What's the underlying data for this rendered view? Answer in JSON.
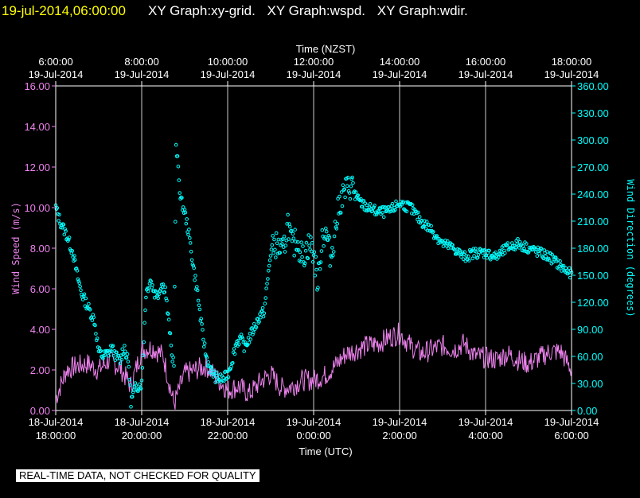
{
  "header": {
    "timestamp": "19-jul-2014,06:00:00",
    "titles": [
      "XY Graph:xy-grid.",
      "XY Graph:wspd.",
      "XY Graph:wdir."
    ]
  },
  "disclaimer": "REAL-TIME DATA, NOT CHECKED FOR QUALITY",
  "colors": {
    "background": "#000000",
    "axes": "#ffffff",
    "wspd": "#ee82ee",
    "wdir": "#00ffff",
    "header_time": "#ffff00"
  },
  "chart_data": {
    "type": "scatter",
    "top_axis": {
      "label": "Time (NZST)",
      "ticks": [
        {
          "time": "6:00:00",
          "date": "19-Jul-2014"
        },
        {
          "time": "8:00:00",
          "date": "19-Jul-2014"
        },
        {
          "time": "10:00:00",
          "date": "19-Jul-2014"
        },
        {
          "time": "12:00:00",
          "date": "19-Jul-2014"
        },
        {
          "time": "14:00:00",
          "date": "19-Jul-2014"
        },
        {
          "time": "16:00:00",
          "date": "19-Jul-2014"
        },
        {
          "time": "18:00:00",
          "date": "19-Jul-2014"
        }
      ]
    },
    "bottom_axis": {
      "label": "Time (UTC)",
      "ticks": [
        {
          "date": "18-Jul-2014",
          "time": "18:00:00"
        },
        {
          "date": "18-Jul-2014",
          "time": "20:00:00"
        },
        {
          "date": "18-Jul-2014",
          "time": "22:00:00"
        },
        {
          "date": "19-Jul-2014",
          "time": "0:00:00"
        },
        {
          "date": "19-Jul-2014",
          "time": "2:00:00"
        },
        {
          "date": "19-Jul-2014",
          "time": "4:00:00"
        },
        {
          "date": "19-Jul-2014",
          "time": "6:00:00"
        }
      ]
    },
    "y_left": {
      "label": "Wind Speed (m/s)",
      "range": [
        0,
        16
      ],
      "ticks": [
        "0.00",
        "2.00",
        "4.00",
        "6.00",
        "8.00",
        "10.00",
        "12.00",
        "14.00",
        "16.00"
      ]
    },
    "y_right": {
      "label": "Wind Direction (degrees)",
      "range": [
        0,
        360
      ],
      "ticks": [
        "0.00",
        "30.00",
        "60.00",
        "90.00",
        "120.00",
        "150.00",
        "180.00",
        "210.00",
        "240.00",
        "270.00",
        "300.00",
        "330.00",
        "360.00"
      ]
    },
    "x_range_hours_utc": [
      18,
      30
    ],
    "grid": "vertical",
    "series": [
      {
        "key": "wspd",
        "axis": "left",
        "style": "line",
        "color": "#ee82ee",
        "x": [
          18.0,
          18.25,
          18.5,
          18.75,
          19.0,
          19.25,
          19.5,
          19.75,
          20.0,
          20.25,
          20.5,
          20.75,
          21.0,
          21.25,
          21.5,
          21.75,
          22.0,
          22.25,
          22.5,
          22.75,
          23.0,
          23.25,
          23.5,
          23.75,
          24.0,
          24.25,
          24.5,
          24.75,
          25.0,
          25.25,
          25.5,
          25.75,
          26.0,
          26.25,
          26.5,
          26.75,
          27.0,
          27.25,
          27.5,
          27.75,
          28.0,
          28.25,
          28.5,
          28.75,
          29.0,
          29.25,
          29.5,
          29.75,
          30.0
        ],
        "y": [
          0.6,
          2.0,
          2.2,
          2.3,
          2.0,
          2.5,
          2.1,
          1.2,
          3.0,
          3.1,
          2.7,
          0.3,
          1.8,
          2.0,
          2.2,
          1.6,
          1.0,
          1.2,
          0.8,
          1.4,
          1.8,
          1.1,
          1.2,
          1.5,
          1.5,
          1.7,
          2.2,
          2.8,
          3.0,
          3.2,
          3.3,
          3.6,
          3.8,
          3.2,
          2.8,
          3.0,
          3.2,
          3.0,
          3.3,
          2.7,
          2.6,
          2.5,
          2.8,
          2.5,
          2.3,
          2.6,
          2.9,
          2.9,
          2.0
        ]
      },
      {
        "key": "wdir",
        "axis": "right",
        "style": "scatter",
        "color": "#00ffff",
        "x": [
          18.0,
          18.1,
          18.25,
          18.4,
          18.5,
          18.6,
          18.75,
          18.9,
          19.0,
          19.1,
          19.25,
          19.3,
          19.4,
          19.5,
          19.55,
          19.6,
          19.7,
          19.75,
          19.85,
          20.0,
          20.1,
          20.2,
          20.3,
          20.4,
          20.45,
          20.55,
          20.6,
          20.65,
          20.7,
          20.75,
          20.8,
          20.85,
          20.9,
          21.0,
          21.1,
          21.2,
          21.3,
          21.4,
          21.5,
          21.6,
          21.75,
          21.9,
          22.0,
          22.1,
          22.2,
          22.3,
          22.4,
          22.5,
          22.6,
          22.75,
          22.85,
          23.0,
          23.1,
          23.2,
          23.3,
          23.4,
          23.5,
          23.6,
          23.75,
          23.9,
          24.0,
          24.1,
          24.2,
          24.3,
          24.4,
          24.5,
          24.6,
          24.75,
          24.9,
          25.0,
          25.1,
          25.25,
          25.5,
          25.75,
          26.0,
          26.25,
          26.5,
          26.75,
          27.0,
          27.25,
          27.5,
          27.75,
          28.0,
          28.25,
          28.5,
          28.75,
          29.0,
          29.25,
          29.5,
          29.75,
          30.0
        ],
        "y": [
          225,
          210,
          195,
          175,
          150,
          130,
          115,
          100,
          65,
          60,
          65,
          70,
          60,
          55,
          65,
          70,
          50,
          10,
          25,
          30,
          130,
          145,
          130,
          130,
          140,
          135,
          110,
          90,
          60,
          55,
          290,
          270,
          235,
          220,
          195,
          160,
          130,
          90,
          60,
          45,
          35,
          35,
          40,
          55,
          75,
          80,
          70,
          80,
          90,
          105,
          110,
          175,
          185,
          180,
          175,
          210,
          180,
          190,
          170,
          185,
          175,
          140,
          195,
          195,
          170,
          200,
          230,
          245,
          250,
          235,
          230,
          225,
          220,
          220,
          230,
          225,
          210,
          200,
          185,
          180,
          170,
          175,
          175,
          170,
          180,
          185,
          180,
          175,
          170,
          160,
          150
        ]
      }
    ]
  }
}
